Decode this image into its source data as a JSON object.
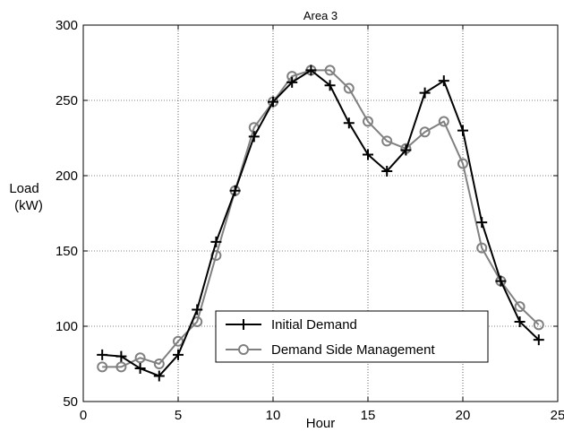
{
  "chart_data": {
    "type": "line",
    "title": "Area 3",
    "xlabel": "Hour",
    "ylabel": "Load\n(kW)",
    "ylabel_line1": "Load",
    "ylabel_line2": "(kW)",
    "xlim": [
      0,
      25
    ],
    "ylim": [
      50,
      300
    ],
    "xticks": [
      0,
      5,
      10,
      15,
      20,
      25
    ],
    "yticks": [
      50,
      100,
      150,
      200,
      250,
      300
    ],
    "xtick_labels": [
      "0",
      "5",
      "10",
      "15",
      "20",
      "25"
    ],
    "ytick_labels": [
      "50",
      "100",
      "150",
      "200",
      "250",
      "300"
    ],
    "grid": true,
    "legend_position": "lower-center",
    "x": [
      1,
      2,
      3,
      4,
      5,
      6,
      7,
      8,
      9,
      10,
      11,
      12,
      13,
      14,
      15,
      16,
      17,
      18,
      19,
      20,
      21,
      22,
      23,
      24
    ],
    "series": [
      {
        "name": "Initial Demand",
        "color": "#000000",
        "marker": "plus",
        "values": [
          81,
          80,
          72,
          67,
          81,
          111,
          156,
          190,
          226,
          249,
          262,
          270,
          260,
          235,
          214,
          203,
          217,
          255,
          263,
          230,
          169,
          130,
          103,
          91
        ]
      },
      {
        "name": "Demand Side Management",
        "color": "#808080",
        "marker": "circle",
        "values": [
          73,
          73,
          79,
          75,
          90,
          103,
          147,
          190,
          232,
          249,
          266,
          270,
          270,
          258,
          236,
          223,
          218,
          229,
          236,
          208,
          152,
          130,
          113,
          101
        ]
      }
    ]
  }
}
